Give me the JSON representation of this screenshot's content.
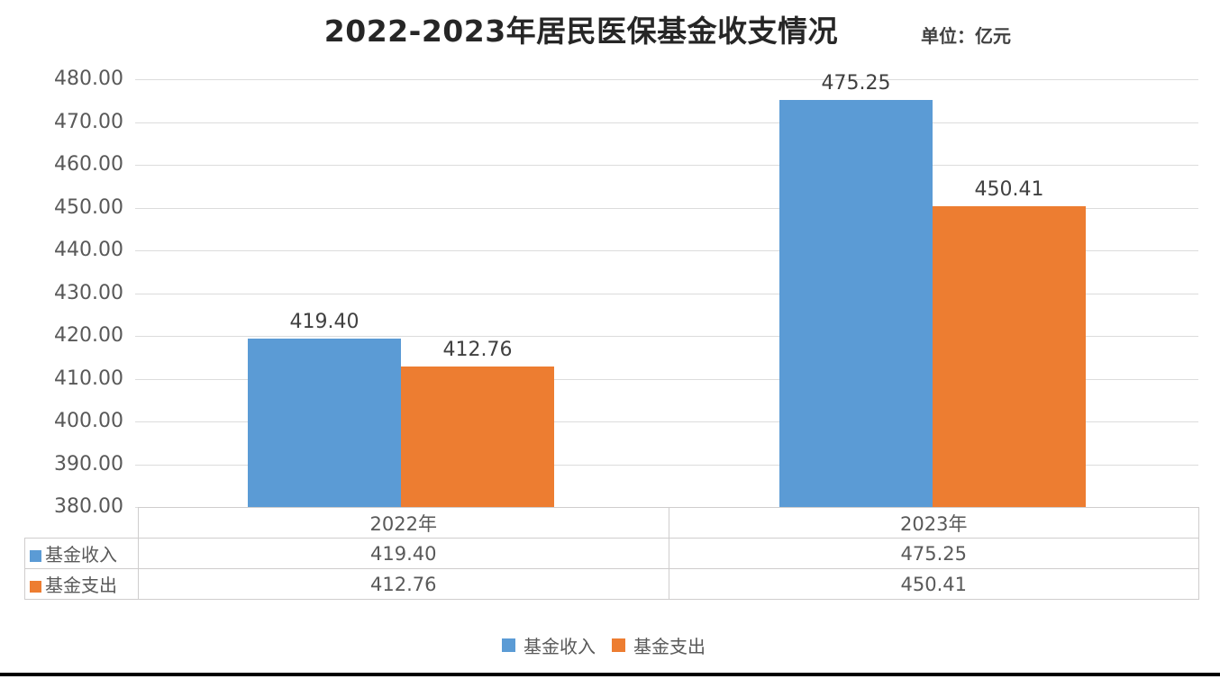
{
  "chart": {
    "title": "2022-2023年居民医保基金收支情况",
    "unit_label": "单位：亿元"
  },
  "chart_data": {
    "type": "bar",
    "title": "2022-2023年居民医保基金收支情况",
    "unit": "亿元",
    "categories": [
      "2022年",
      "2023年"
    ],
    "series": [
      {
        "name": "基金收入",
        "color": "#5B9BD5",
        "values": [
          419.4,
          475.25
        ],
        "value_labels": [
          "419.40",
          "475.25"
        ]
      },
      {
        "name": "基金支出",
        "color": "#ED7D31",
        "values": [
          412.76,
          450.41
        ],
        "value_labels": [
          "412.76",
          "450.41"
        ]
      }
    ],
    "ylim": [
      380,
      480
    ],
    "ytick_step": 10,
    "ytick_labels": [
      "380.00",
      "390.00",
      "400.00",
      "410.00",
      "420.00",
      "430.00",
      "440.00",
      "450.00",
      "460.00",
      "470.00",
      "480.00"
    ],
    "grid": true,
    "legend_position": "bottom",
    "has_data_table": true,
    "value_labels_shown": true,
    "colors": {
      "income": "#5B9BD5",
      "expense": "#ED7D31",
      "gridline": "#DCDCDC",
      "table_border": "#CFCDCD",
      "text": "#595959",
      "title": "#262626"
    }
  }
}
